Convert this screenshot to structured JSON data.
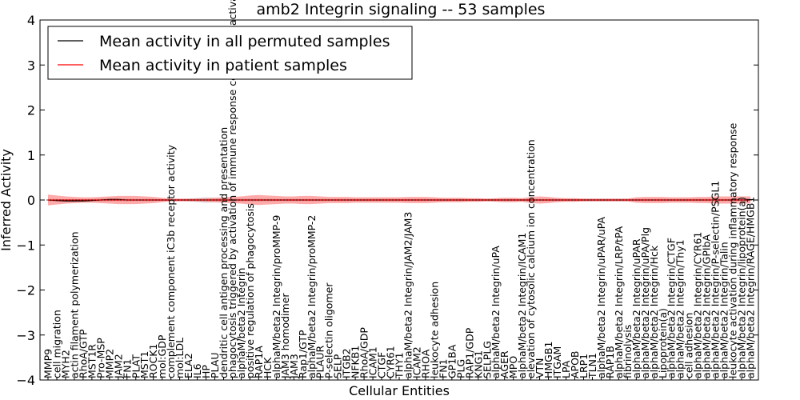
{
  "chart_data": {
    "type": "line",
    "title": "amb2 Integrin signaling -- 53 samples",
    "xlabel": "Cellular Entities",
    "ylabel": "Inferred Activity",
    "ylim": [
      -4,
      4
    ],
    "yticks": [
      "−4",
      "−3",
      "−2",
      "−1",
      "0",
      "1",
      "2",
      "3",
      "4"
    ],
    "legend_position": "top-left",
    "categories": [
      "MMP9",
      "cell migration",
      "MYH2",
      "actin filament polymerization",
      "RhoA/GTP",
      "MST1R",
      "Pro-MSP",
      "MMP2",
      "JAM2",
      "FN1",
      "PLAT",
      "MST1",
      "ROCK1",
      "mol:GDP",
      "complement component iC3b receptor activity",
      "mol:LDL",
      "ELA2",
      "IL6",
      "HP",
      "PLAU",
      "dendritic cell antigen processing and presentation",
      "phagocytosis triggered by activation of immune response cell surface activating receptor",
      "alphaM/beta2 Integrin",
      "positive regulation of phagocytosis",
      "RAP1A",
      "HCK",
      "alphaM/beta2 Integrin/proMMP-9",
      "JAM3 homodimer",
      "JAM3",
      "Rap1/GTP",
      "alphaM/beta2 Integrin/proMMP-2",
      "PLAUR",
      "P-selectin oligomer",
      "SELP",
      "ITGB2",
      "NFKB1",
      "RhoA/GDP",
      "ICAM1",
      "CTGF",
      "CYR61",
      "THY1",
      "alphaM/beta2 Integrin/JAM2/JAM3",
      "ICAM2",
      "RHOA",
      "leukocyte adhesion",
      "FN1",
      "GP1BA",
      "PLG",
      "RAP1/GDP",
      "KNG1",
      "SELPLG",
      "alphaM/beta2 Integrin/uPA",
      "AGER",
      "MPO",
      "alphaM/beta2 Integrin/ICAM1",
      "elevation of cytosolic calcium ion concentration",
      "VTN",
      "HMGB1",
      "ITGAM",
      "LPA",
      "APOB",
      "LRP1",
      "TLN1",
      "alphaM/beta2 Integrin/uPAR/uPA",
      "RAP1B",
      "alphaM/beta2 Integrin/LRP/tPA",
      "fibrinolysis",
      "alphaM/beta2 Integrin/uPAR",
      "alphaM/beta2 Integrin/uPA/Plg",
      "alphaM/beta2 Integrin/Hck",
      "Lipoprotein(a)",
      "alphaM/beta2 Integrin/CTGF",
      "alphaM/beta2 Integrin/Thy1",
      "cell adhesion",
      "alphaM/beta2 Integrin/CYR61",
      "alphaM/beta2 Integrin/GPIbA",
      "alphaM/beta2 Integrin/P-selectin/PSGL1",
      "alphaM/beta2 Integrin/Talin",
      "leukocyte activation during inflammatory response",
      "alphaM/beta2 Integrin/lipoprotein(a)",
      "alphaM/beta2 Integrin/RAGE/HMGB1"
    ],
    "series": [
      {
        "name": "Mean activity in all permuted samples",
        "color": "#000000",
        "values": [
          0.0,
          -0.01,
          -0.02,
          -0.02,
          -0.02,
          -0.01,
          0.0,
          0.01,
          0.01,
          0.0,
          0.0,
          0.0,
          0.0,
          0.0,
          0.0,
          0.0,
          0.0,
          0.0,
          0.0,
          0.0,
          0.0,
          0.0,
          0.0,
          0.0,
          0.0,
          0.0,
          0.0,
          0.0,
          0.0,
          0.0,
          0.0,
          0.0,
          0.0,
          0.0,
          0.0,
          0.0,
          0.0,
          0.0,
          0.0,
          0.0,
          0.0,
          0.0,
          0.0,
          0.0,
          0.0,
          0.0,
          0.0,
          0.0,
          0.0,
          0.0,
          0.0,
          0.0,
          0.0,
          0.0,
          0.0,
          0.0,
          0.0,
          0.0,
          0.0,
          0.0,
          0.0,
          0.0,
          0.0,
          0.0,
          0.0,
          0.0,
          0.0,
          0.0,
          0.0,
          0.0,
          0.0,
          0.0,
          0.0,
          0.0,
          0.0,
          0.0,
          0.0,
          0.0,
          0.0,
          0.0,
          0.0
        ],
        "band": [
          0.03,
          0.03,
          0.03,
          0.03,
          0.03,
          0.03,
          0.04,
          0.04,
          0.04,
          0.04,
          0.03,
          0.03,
          0.03,
          0.02,
          0.02,
          0.02,
          0.03,
          0.05,
          0.06,
          0.05,
          0.05,
          0.05,
          0.04,
          0.04,
          0.04,
          0.04,
          0.03,
          0.03,
          0.03,
          0.03,
          0.03,
          0.03,
          0.03,
          0.03,
          0.03,
          0.03,
          0.03,
          0.03,
          0.03,
          0.03,
          0.03,
          0.03,
          0.03,
          0.03,
          0.03,
          0.03,
          0.03,
          0.03,
          0.03,
          0.03,
          0.03,
          0.03,
          0.03,
          0.03,
          0.03,
          0.03,
          0.03,
          0.03,
          0.03,
          0.03,
          0.03,
          0.03,
          0.03,
          0.03,
          0.03,
          0.03,
          0.03,
          0.03,
          0.03,
          0.03,
          0.03,
          0.03,
          0.03,
          0.03,
          0.03,
          0.03,
          0.03,
          0.03,
          0.03,
          0.03,
          0.03
        ]
      },
      {
        "name": "Mean activity in patient samples",
        "color": "#ff0000",
        "values": [
          0.0,
          0.0,
          0.0,
          0.0,
          0.0,
          0.0,
          0.0,
          0.0,
          0.0,
          0.0,
          0.0,
          0.0,
          0.0,
          0.0,
          0.0,
          0.0,
          0.0,
          0.0,
          0.0,
          0.0,
          0.0,
          0.0,
          0.0,
          0.0,
          0.0,
          0.0,
          0.0,
          0.0,
          0.0,
          0.0,
          0.0,
          0.0,
          0.0,
          0.0,
          0.0,
          0.0,
          0.0,
          0.0,
          0.0,
          0.0,
          0.0,
          0.0,
          0.0,
          0.0,
          0.0,
          0.0,
          0.0,
          0.0,
          0.0,
          0.0,
          0.0,
          0.0,
          0.0,
          0.0,
          0.0,
          0.0,
          0.0,
          0.0,
          0.0,
          0.0,
          0.0,
          0.0,
          0.0,
          0.0,
          0.0,
          0.0,
          0.0,
          0.0,
          0.0,
          0.0,
          0.0,
          0.0,
          0.0,
          0.0,
          0.0,
          0.0,
          0.0,
          0.0,
          0.0,
          0.0,
          0.0
        ],
        "band": [
          0.12,
          0.1,
          0.08,
          0.07,
          0.06,
          0.06,
          0.07,
          0.08,
          0.09,
          0.09,
          0.09,
          0.08,
          0.07,
          0.05,
          0.03,
          0.03,
          0.03,
          0.03,
          0.04,
          0.05,
          0.06,
          0.07,
          0.08,
          0.1,
          0.11,
          0.1,
          0.09,
          0.08,
          0.08,
          0.09,
          0.09,
          0.08,
          0.07,
          0.07,
          0.07,
          0.06,
          0.06,
          0.06,
          0.06,
          0.06,
          0.06,
          0.07,
          0.07,
          0.07,
          0.06,
          0.05,
          0.05,
          0.05,
          0.04,
          0.04,
          0.03,
          0.04,
          0.05,
          0.05,
          0.04,
          0.07,
          0.08,
          0.07,
          0.05,
          0.04,
          0.04,
          0.03,
          0.03,
          0.03,
          0.03,
          0.03,
          0.03,
          0.06,
          0.07,
          0.07,
          0.07,
          0.06,
          0.06,
          0.06,
          0.07,
          0.07,
          0.08,
          0.08,
          0.08,
          0.08,
          0.08
        ]
      }
    ]
  }
}
